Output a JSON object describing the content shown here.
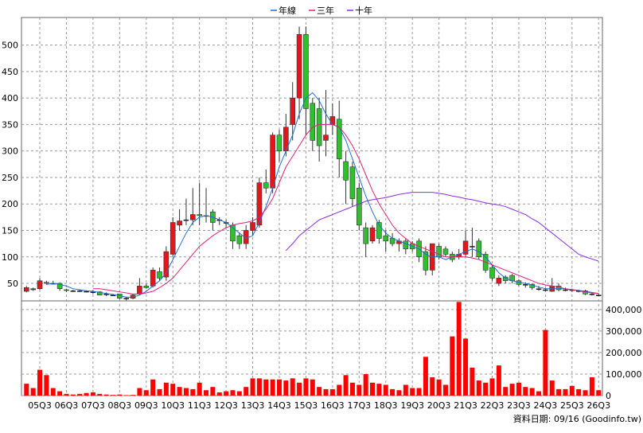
{
  "chart_data": {
    "type": "candlestick",
    "categories": [
      null,
      null,
      "05Q3",
      null,
      null,
      null,
      "06Q3",
      null,
      null,
      null,
      "07Q3",
      null,
      null,
      null,
      "08Q3",
      null,
      null,
      null,
      "09Q3",
      null,
      null,
      null,
      "10Q3",
      null,
      null,
      null,
      "11Q3",
      null,
      null,
      null,
      "12Q3",
      null,
      null,
      null,
      "13Q3",
      null,
      null,
      null,
      "14Q3",
      null,
      null,
      null,
      "15Q3",
      null,
      null,
      null,
      "16Q3",
      null,
      null,
      null,
      "17Q3",
      null,
      null,
      null,
      "18Q3",
      null,
      null,
      null,
      "19Q3",
      null,
      null,
      null,
      "20Q3",
      null,
      null,
      null,
      "21Q3",
      null,
      null,
      null,
      "22Q3",
      null,
      null,
      null,
      "23Q3",
      null,
      null,
      null,
      "24Q3",
      null,
      null,
      null,
      "25Q3",
      null,
      null,
      null,
      "26Q3"
    ],
    "open": [
      35,
      38,
      40,
      52,
      50,
      50,
      38,
      36,
      36,
      35,
      34,
      34,
      30,
      28,
      30,
      22,
      22,
      30,
      45,
      45,
      72,
      62,
      105,
      160,
      170,
      170,
      180,
      178,
      185,
      170,
      165,
      160,
      140,
      125,
      150,
      160,
      240,
      230,
      330,
      300,
      350,
      400,
      520,
      390,
      380,
      320,
      350,
      360,
      280,
      270,
      230,
      155,
      130,
      165,
      140,
      135,
      125,
      130,
      125,
      130,
      110,
      75,
      120,
      115,
      105,
      100,
      105,
      120,
      130,
      105,
      80,
      50,
      62,
      65,
      55,
      48,
      48,
      40,
      38,
      35,
      45,
      38,
      38,
      36,
      36,
      30,
      28
    ],
    "high": [
      45,
      42,
      60,
      55,
      55,
      52,
      40,
      38,
      38,
      37,
      37,
      35,
      33,
      30,
      30,
      25,
      30,
      60,
      50,
      80,
      80,
      120,
      175,
      190,
      210,
      230,
      240,
      230,
      190,
      175,
      170,
      165,
      145,
      160,
      175,
      250,
      265,
      335,
      340,
      370,
      430,
      535,
      535,
      400,
      400,
      415,
      390,
      395,
      300,
      280,
      240,
      165,
      160,
      170,
      150,
      145,
      135,
      135,
      130,
      135,
      120,
      125,
      125,
      120,
      110,
      115,
      150,
      155,
      135,
      110,
      85,
      65,
      65,
      68,
      58,
      52,
      50,
      45,
      42,
      60,
      50,
      42,
      40,
      38,
      38,
      33,
      31
    ],
    "low": [
      33,
      36,
      38,
      48,
      48,
      36,
      34,
      34,
      34,
      33,
      30,
      28,
      26,
      26,
      20,
      18,
      20,
      28,
      40,
      42,
      55,
      55,
      100,
      150,
      160,
      160,
      160,
      165,
      150,
      160,
      155,
      115,
      115,
      115,
      140,
      155,
      220,
      220,
      280,
      290,
      320,
      360,
      330,
      300,
      280,
      290,
      330,
      250,
      200,
      195,
      150,
      100,
      125,
      125,
      110,
      120,
      110,
      105,
      110,
      90,
      65,
      65,
      95,
      100,
      90,
      95,
      100,
      100,
      95,
      70,
      55,
      45,
      50,
      50,
      45,
      42,
      38,
      36,
      35,
      34,
      35,
      35,
      34,
      33,
      28,
      27,
      26
    ],
    "close": [
      42,
      40,
      55,
      50,
      50,
      40,
      37,
      36,
      36,
      35,
      34,
      28,
      30,
      28,
      22,
      22,
      28,
      45,
      42,
      75,
      60,
      110,
      165,
      168,
      170,
      180,
      178,
      178,
      165,
      170,
      165,
      130,
      125,
      150,
      165,
      240,
      230,
      330,
      300,
      345,
      400,
      520,
      380,
      320,
      310,
      330,
      365,
      285,
      245,
      210,
      160,
      125,
      155,
      135,
      130,
      125,
      130,
      115,
      115,
      100,
      75,
      125,
      100,
      105,
      95,
      105,
      130,
      120,
      100,
      75,
      60,
      60,
      55,
      55,
      48,
      48,
      42,
      40,
      38,
      45,
      38,
      38,
      38,
      36,
      30,
      30,
      28
    ],
    "up_color": "#e8141c",
    "down_color": "#2fbf2f",
    "ylim": [
      17,
      552
    ],
    "yticks": [
      50,
      100,
      150,
      200,
      250,
      300,
      350,
      400,
      450,
      500
    ],
    "grid": true,
    "legend": "top",
    "lines": [
      {
        "name": "年線",
        "color": "#1f6fd0",
        "values": [
          null,
          null,
          null,
          48,
          50,
          48,
          45,
          40,
          38,
          36,
          35,
          33,
          31,
          29,
          27,
          24,
          24,
          28,
          35,
          45,
          55,
          70,
          95,
          120,
          145,
          165,
          175,
          178,
          175,
          170,
          165,
          155,
          145,
          135,
          140,
          165,
          195,
          230,
          270,
          300,
          330,
          370,
          400,
          410,
          395,
          370,
          350,
          345,
          320,
          285,
          250,
          215,
          185,
          160,
          145,
          135,
          130,
          125,
          120,
          115,
          105,
          100,
          100,
          95,
          100,
          105,
          110,
          115,
          110,
          100,
          85,
          70,
          60,
          55,
          52,
          50,
          47,
          43,
          40,
          40,
          40,
          40,
          38,
          37,
          35,
          33,
          31
        ]
      },
      {
        "name": "三年",
        "color": "#e0207a",
        "values": [
          null,
          null,
          null,
          null,
          null,
          null,
          null,
          null,
          null,
          null,
          40,
          40,
          38,
          36,
          34,
          32,
          30,
          30,
          32,
          35,
          42,
          50,
          60,
          75,
          90,
          105,
          120,
          130,
          140,
          148,
          155,
          160,
          163,
          165,
          168,
          175,
          190,
          210,
          240,
          270,
          290,
          310,
          330,
          345,
          350,
          350,
          350,
          345,
          330,
          310,
          285,
          255,
          225,
          200,
          180,
          160,
          145,
          135,
          125,
          120,
          115,
          110,
          105,
          100,
          100,
          100,
          100,
          98,
          95,
          90,
          85,
          80,
          75,
          70,
          65,
          60,
          55,
          50,
          47,
          45,
          43,
          40,
          38,
          36,
          34,
          32,
          31
        ]
      },
      {
        "name": "十年",
        "color": "#8a2be2",
        "values": [
          null,
          null,
          null,
          null,
          null,
          null,
          null,
          null,
          null,
          null,
          null,
          null,
          null,
          null,
          null,
          null,
          null,
          null,
          null,
          null,
          null,
          null,
          null,
          null,
          null,
          null,
          null,
          null,
          null,
          null,
          null,
          null,
          null,
          null,
          null,
          null,
          null,
          null,
          null,
          112,
          125,
          140,
          150,
          160,
          170,
          175,
          180,
          185,
          190,
          195,
          200,
          205,
          208,
          210,
          212,
          215,
          218,
          220,
          222,
          222,
          222,
          222,
          220,
          218,
          215,
          213,
          210,
          208,
          205,
          202,
          200,
          198,
          195,
          190,
          185,
          180,
          172,
          165,
          155,
          145,
          135,
          125,
          115,
          105,
          100,
          96,
          92
        ]
      }
    ],
    "volume": {
      "color": "#ff0000",
      "ylim": [
        0,
        440000
      ],
      "yticks": [
        0,
        {
          "value": 100000,
          "label": "100,000"
        },
        {
          "value": 200000,
          "label": "200,000"
        },
        {
          "value": 300000,
          "label": "300,000"
        },
        {
          "value": 400000,
          "label": "400,000"
        }
      ],
      "values": [
        55000,
        35000,
        120000,
        95000,
        35000,
        20000,
        8000,
        5000,
        8000,
        12000,
        15000,
        8000,
        5000,
        3000,
        5000,
        2000,
        3000,
        35000,
        25000,
        75000,
        30000,
        60000,
        55000,
        40000,
        35000,
        30000,
        60000,
        25000,
        40000,
        15000,
        20000,
        25000,
        20000,
        40000,
        80000,
        80000,
        75000,
        75000,
        75000,
        70000,
        80000,
        60000,
        80000,
        75000,
        40000,
        30000,
        30000,
        50000,
        95000,
        60000,
        50000,
        100000,
        60000,
        55000,
        50000,
        30000,
        25000,
        50000,
        35000,
        35000,
        180000,
        85000,
        75000,
        50000,
        275000,
        435000,
        265000,
        130000,
        70000,
        60000,
        80000,
        140000,
        40000,
        55000,
        60000,
        40000,
        35000,
        20000,
        305000,
        70000,
        30000,
        30000,
        45000,
        30000,
        25000,
        85000,
        25000
      ]
    },
    "source": "資料日期: 09/16  (Goodinfo.tw)"
  }
}
